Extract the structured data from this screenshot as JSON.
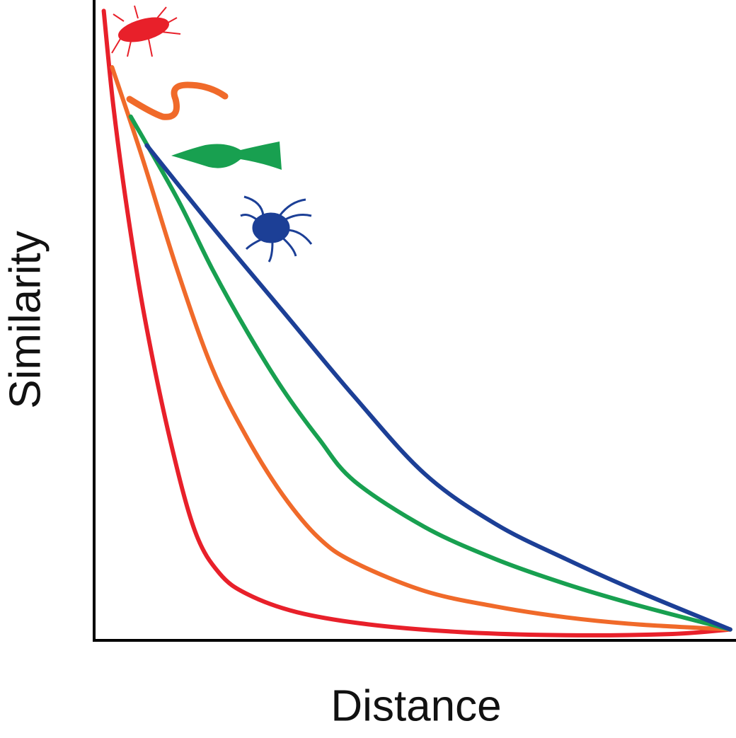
{
  "chart_data": {
    "type": "line",
    "x_label": "Distance",
    "y_label": "Similarity",
    "xlim": [
      0,
      100
    ],
    "ylim": [
      0,
      100
    ],
    "series": [
      {
        "color": "#e8202a",
        "x": [
          1.5,
          3.0,
          5.2,
          7.9,
          11.8,
          15.7,
          19.5,
          23.9,
          31.6,
          42.7,
          57.0,
          73.5,
          90.1,
          99.1
        ],
        "values": [
          98.3,
          83.4,
          66.9,
          50.3,
          31.5,
          17.1,
          10.5,
          7.2,
          4.4,
          2.5,
          1.3,
          0.8,
          1.0,
          1.7
        ]
      },
      {
        "color": "#f06a2a",
        "x": [
          2.8,
          7.4,
          12.9,
          18.4,
          23.9,
          29.4,
          35.0,
          40.5,
          51.5,
          62.5,
          73.5,
          84.6,
          99.1
        ],
        "values": [
          89.5,
          75.7,
          58.0,
          42.5,
          31.5,
          22.7,
          16.0,
          12.2,
          7.7,
          5.3,
          3.6,
          2.5,
          1.7
        ]
      },
      {
        "color": "#18a050",
        "x": [
          5.7,
          12.9,
          18.4,
          23.9,
          29.4,
          35.0,
          40.5,
          51.5,
          62.5,
          73.5,
          84.6,
          99.1
        ],
        "values": [
          81.8,
          69.1,
          58.0,
          48.1,
          39.2,
          31.5,
          24.9,
          17.7,
          12.7,
          8.8,
          5.5,
          1.7
        ]
      },
      {
        "color": "#1c3f96",
        "x": [
          8.2,
          18.4,
          29.4,
          40.5,
          51.5,
          62.5,
          73.5,
          84.6,
          99.1
        ],
        "values": [
          77.3,
          64.6,
          51.4,
          38.1,
          26.0,
          18.2,
          12.7,
          7.7,
          1.7
        ]
      }
    ]
  }
}
